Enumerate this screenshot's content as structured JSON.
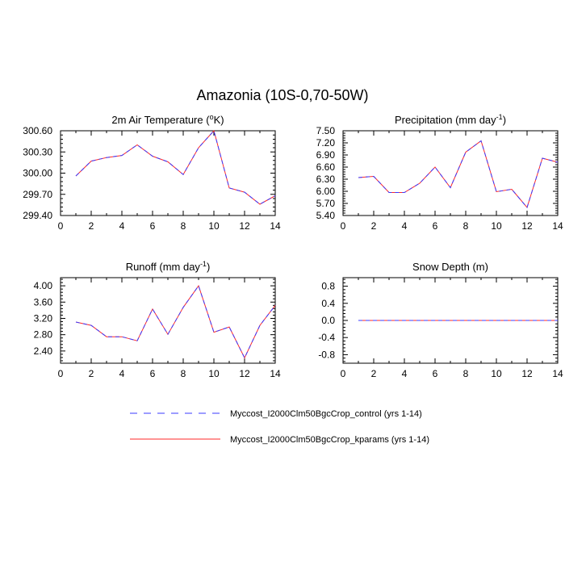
{
  "figure": {
    "title": "Amazonia (10S-0,70-50W)"
  },
  "legend": {
    "entries": [
      {
        "name": "Myccost_I2000Clm50BgcCrop_control (yrs 1-14)",
        "color": "#3b3bff",
        "style": "dashed"
      },
      {
        "name": "Myccost_I2000Clm50BgcCrop_kparams (yrs 1-14)",
        "color": "#ff2a2a",
        "style": "solid"
      }
    ]
  },
  "chart_data": [
    {
      "type": "line",
      "title": "2m Air Temperature (",
      "title_sup": "o",
      "title_suffix": "K)",
      "xlim": [
        0,
        14
      ],
      "ylim": [
        299.4,
        300.6
      ],
      "xticks": [
        0,
        2,
        4,
        6,
        8,
        10,
        12,
        14
      ],
      "yticks": [
        299.4,
        299.7,
        300.0,
        300.3,
        300.6
      ],
      "ytick_labels": [
        "299.40",
        "299.70",
        "300.00",
        "300.30",
        "300.60"
      ],
      "x": [
        1,
        2,
        3,
        4,
        5,
        6,
        7,
        8,
        9,
        10,
        11,
        12,
        13,
        14
      ],
      "series": [
        {
          "name": "control",
          "values": [
            299.96,
            300.17,
            300.22,
            300.25,
            300.4,
            300.24,
            300.16,
            299.98,
            300.36,
            300.6,
            299.79,
            299.73,
            299.56,
            299.68
          ]
        },
        {
          "name": "kparams",
          "values": [
            299.96,
            300.17,
            300.22,
            300.25,
            300.4,
            300.24,
            300.16,
            299.98,
            300.36,
            300.6,
            299.79,
            299.73,
            299.56,
            299.68
          ]
        }
      ]
    },
    {
      "type": "line",
      "title": "Precipitation (mm day",
      "title_sup": "-1",
      "title_suffix": ")",
      "xlim": [
        0,
        14
      ],
      "ylim": [
        5.4,
        7.5
      ],
      "xticks": [
        0,
        2,
        4,
        6,
        8,
        10,
        12,
        14
      ],
      "yticks": [
        5.4,
        5.7,
        6.0,
        6.3,
        6.6,
        6.9,
        7.2,
        7.5
      ],
      "ytick_labels": [
        "5.40",
        "5.70",
        "6.00",
        "6.30",
        "6.60",
        "6.90",
        "7.20",
        "7.50"
      ],
      "x": [
        1,
        2,
        3,
        4,
        5,
        6,
        7,
        8,
        9,
        10,
        11,
        12,
        13,
        14
      ],
      "series": [
        {
          "name": "control",
          "values": [
            6.34,
            6.37,
            5.97,
            5.97,
            6.2,
            6.6,
            6.09,
            6.97,
            7.25,
            5.99,
            6.05,
            5.6,
            6.82,
            6.72
          ]
        },
        {
          "name": "kparams",
          "values": [
            6.34,
            6.37,
            5.97,
            5.97,
            6.2,
            6.6,
            6.09,
            6.97,
            7.25,
            5.99,
            6.05,
            5.6,
            6.82,
            6.72
          ]
        }
      ]
    },
    {
      "type": "line",
      "title": "Runoff (mm day",
      "title_sup": "-1",
      "title_suffix": ")",
      "xlim": [
        0,
        14
      ],
      "ylim": [
        2.1,
        4.2
      ],
      "xticks": [
        0,
        2,
        4,
        6,
        8,
        10,
        12,
        14
      ],
      "yticks": [
        2.4,
        2.8,
        3.2,
        3.6,
        4.0
      ],
      "ytick_labels": [
        "2.40",
        "2.80",
        "3.20",
        "3.60",
        "4.00"
      ],
      "x": [
        1,
        2,
        3,
        4,
        5,
        6,
        7,
        8,
        9,
        10,
        11,
        12,
        13,
        14
      ],
      "series": [
        {
          "name": "control",
          "values": [
            3.11,
            3.03,
            2.75,
            2.75,
            2.65,
            3.43,
            2.81,
            3.47,
            4.0,
            2.86,
            2.99,
            2.23,
            3.03,
            3.52
          ]
        },
        {
          "name": "kparams",
          "values": [
            3.11,
            3.03,
            2.75,
            2.75,
            2.65,
            3.43,
            2.81,
            3.47,
            4.0,
            2.86,
            2.99,
            2.23,
            3.03,
            3.52
          ]
        }
      ]
    },
    {
      "type": "line",
      "title": "Snow Depth (m)",
      "title_sup": "",
      "title_suffix": "",
      "xlim": [
        0,
        14
      ],
      "ylim": [
        -1.0,
        1.0
      ],
      "xticks": [
        0,
        2,
        4,
        6,
        8,
        10,
        12,
        14
      ],
      "yticks": [
        -0.8,
        -0.4,
        0.0,
        0.4,
        0.8
      ],
      "ytick_labels": [
        "-0.8",
        "-0.4",
        "0.0",
        "0.4",
        "0.8"
      ],
      "x": [
        1,
        2,
        3,
        4,
        5,
        6,
        7,
        8,
        9,
        10,
        11,
        12,
        13,
        14
      ],
      "series": [
        {
          "name": "control",
          "values": [
            0,
            0,
            0,
            0,
            0,
            0,
            0,
            0,
            0,
            0,
            0,
            0,
            0,
            0
          ]
        },
        {
          "name": "kparams",
          "values": [
            0,
            0,
            0,
            0,
            0,
            0,
            0,
            0,
            0,
            0,
            0,
            0,
            0,
            0
          ]
        }
      ]
    }
  ]
}
